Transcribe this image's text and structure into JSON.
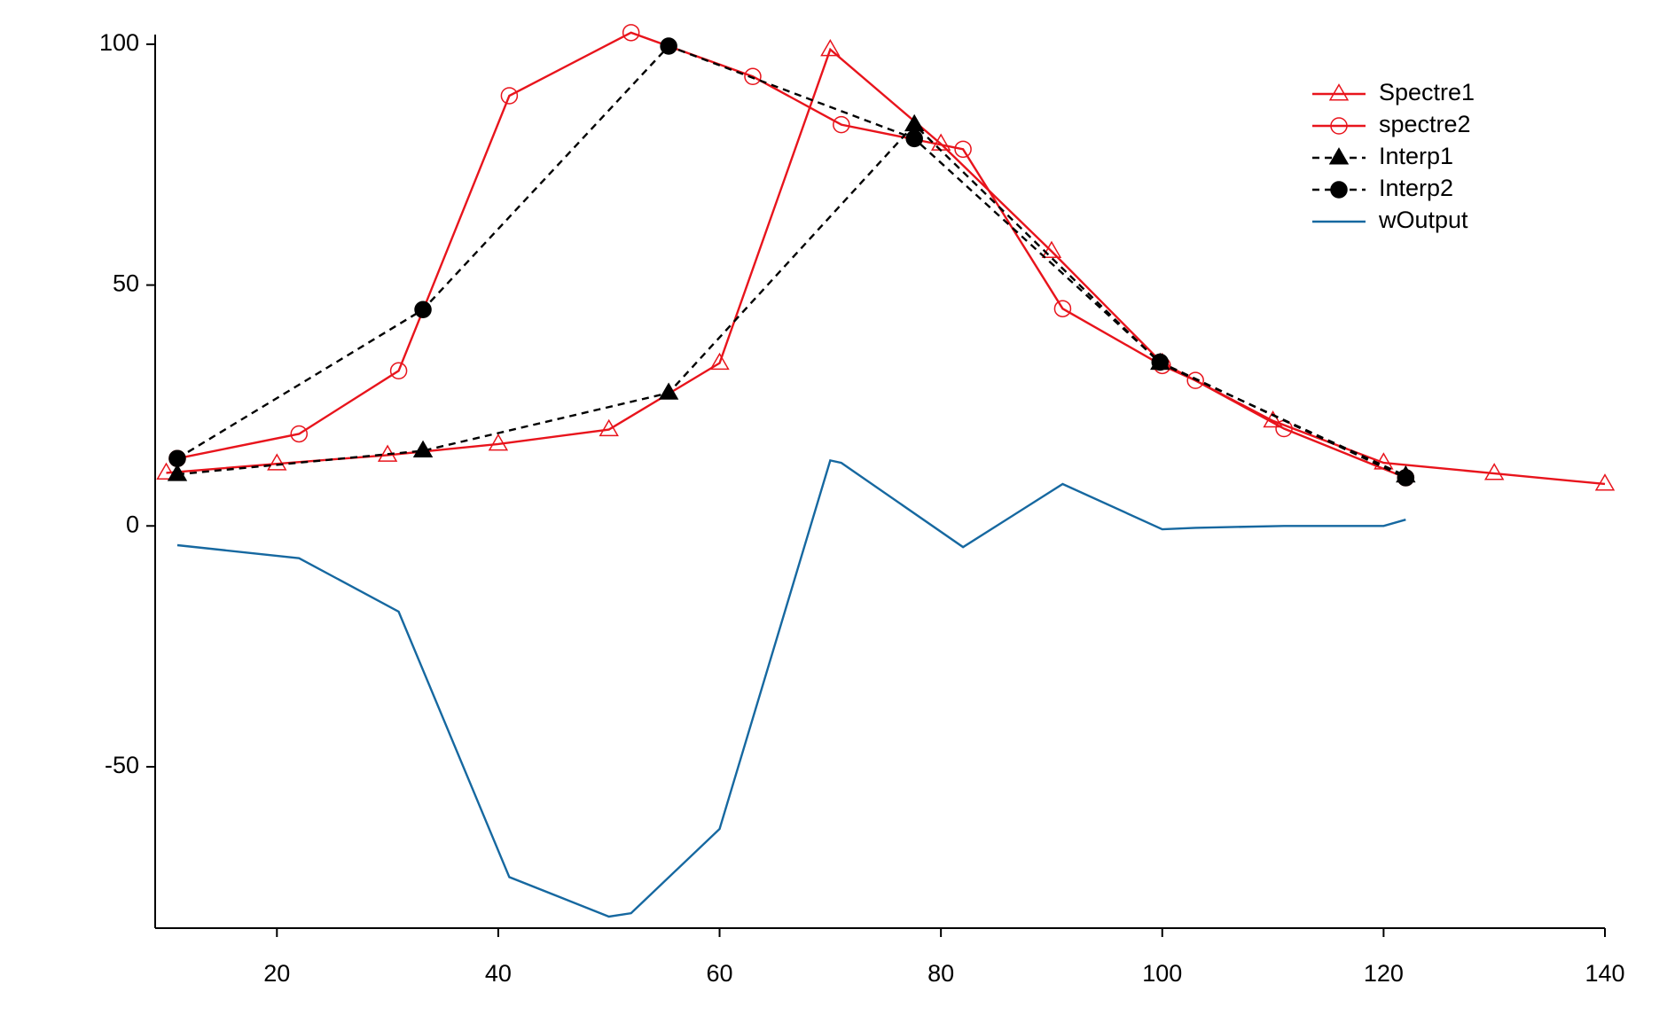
{
  "chart_data": {
    "type": "line",
    "xlim": [
      9,
      140
    ],
    "ylim": [
      -83.5,
      102
    ],
    "xticks": [
      20,
      40,
      60,
      80,
      100,
      120,
      140
    ],
    "yticks": [
      -50,
      0,
      50,
      100
    ],
    "legend": "top-right",
    "series": [
      {
        "name": "Spectre1",
        "color": "#e8141c",
        "marker": "triangle-open",
        "dash": false,
        "x": [
          10,
          20,
          30,
          40,
          50,
          60,
          70,
          80,
          90,
          100,
          110,
          120,
          130,
          140
        ],
        "values": [
          11,
          12.9,
          14.7,
          17,
          20,
          33.8,
          98.9,
          79.3,
          57,
          33.8,
          21.8,
          13.1,
          10.9,
          8.7
        ]
      },
      {
        "name": "spectre2",
        "color": "#e8141c",
        "marker": "circle-open",
        "dash": false,
        "x": [
          11,
          22,
          31,
          41,
          52,
          63,
          71,
          82,
          91,
          100,
          103,
          111,
          122
        ],
        "values": [
          14,
          19.1,
          32.2,
          89.3,
          102.4,
          93.3,
          83.3,
          78.2,
          45.1,
          33.3,
          30.2,
          20.2,
          10
        ]
      },
      {
        "name": "Interp1",
        "color": "#000000",
        "marker": "triangle",
        "dash": true,
        "x": [
          11,
          33.2,
          55.4,
          77.6,
          99.8,
          122
        ],
        "values": [
          10.7,
          15.6,
          27.6,
          83.3,
          33.8,
          10.4
        ]
      },
      {
        "name": "Interp2",
        "color": "#000000",
        "marker": "circle",
        "dash": true,
        "x": [
          11,
          33.2,
          55.4,
          77.6,
          99.8,
          122
        ],
        "values": [
          14,
          44.9,
          99.6,
          80.4,
          34,
          10
        ]
      },
      {
        "name": "wOutput",
        "color": "#1668a0",
        "marker": "none",
        "dash": false,
        "x": [
          11,
          22,
          31,
          41,
          50,
          52,
          60,
          70,
          71,
          82,
          91,
          100,
          103,
          111,
          120,
          122
        ],
        "values": [
          -4,
          -6.7,
          -17.8,
          -72.9,
          -81.1,
          -80.4,
          -62.9,
          13.6,
          13.1,
          -4.4,
          8.7,
          -0.7,
          -0.4,
          0,
          0,
          1.3
        ]
      }
    ]
  }
}
